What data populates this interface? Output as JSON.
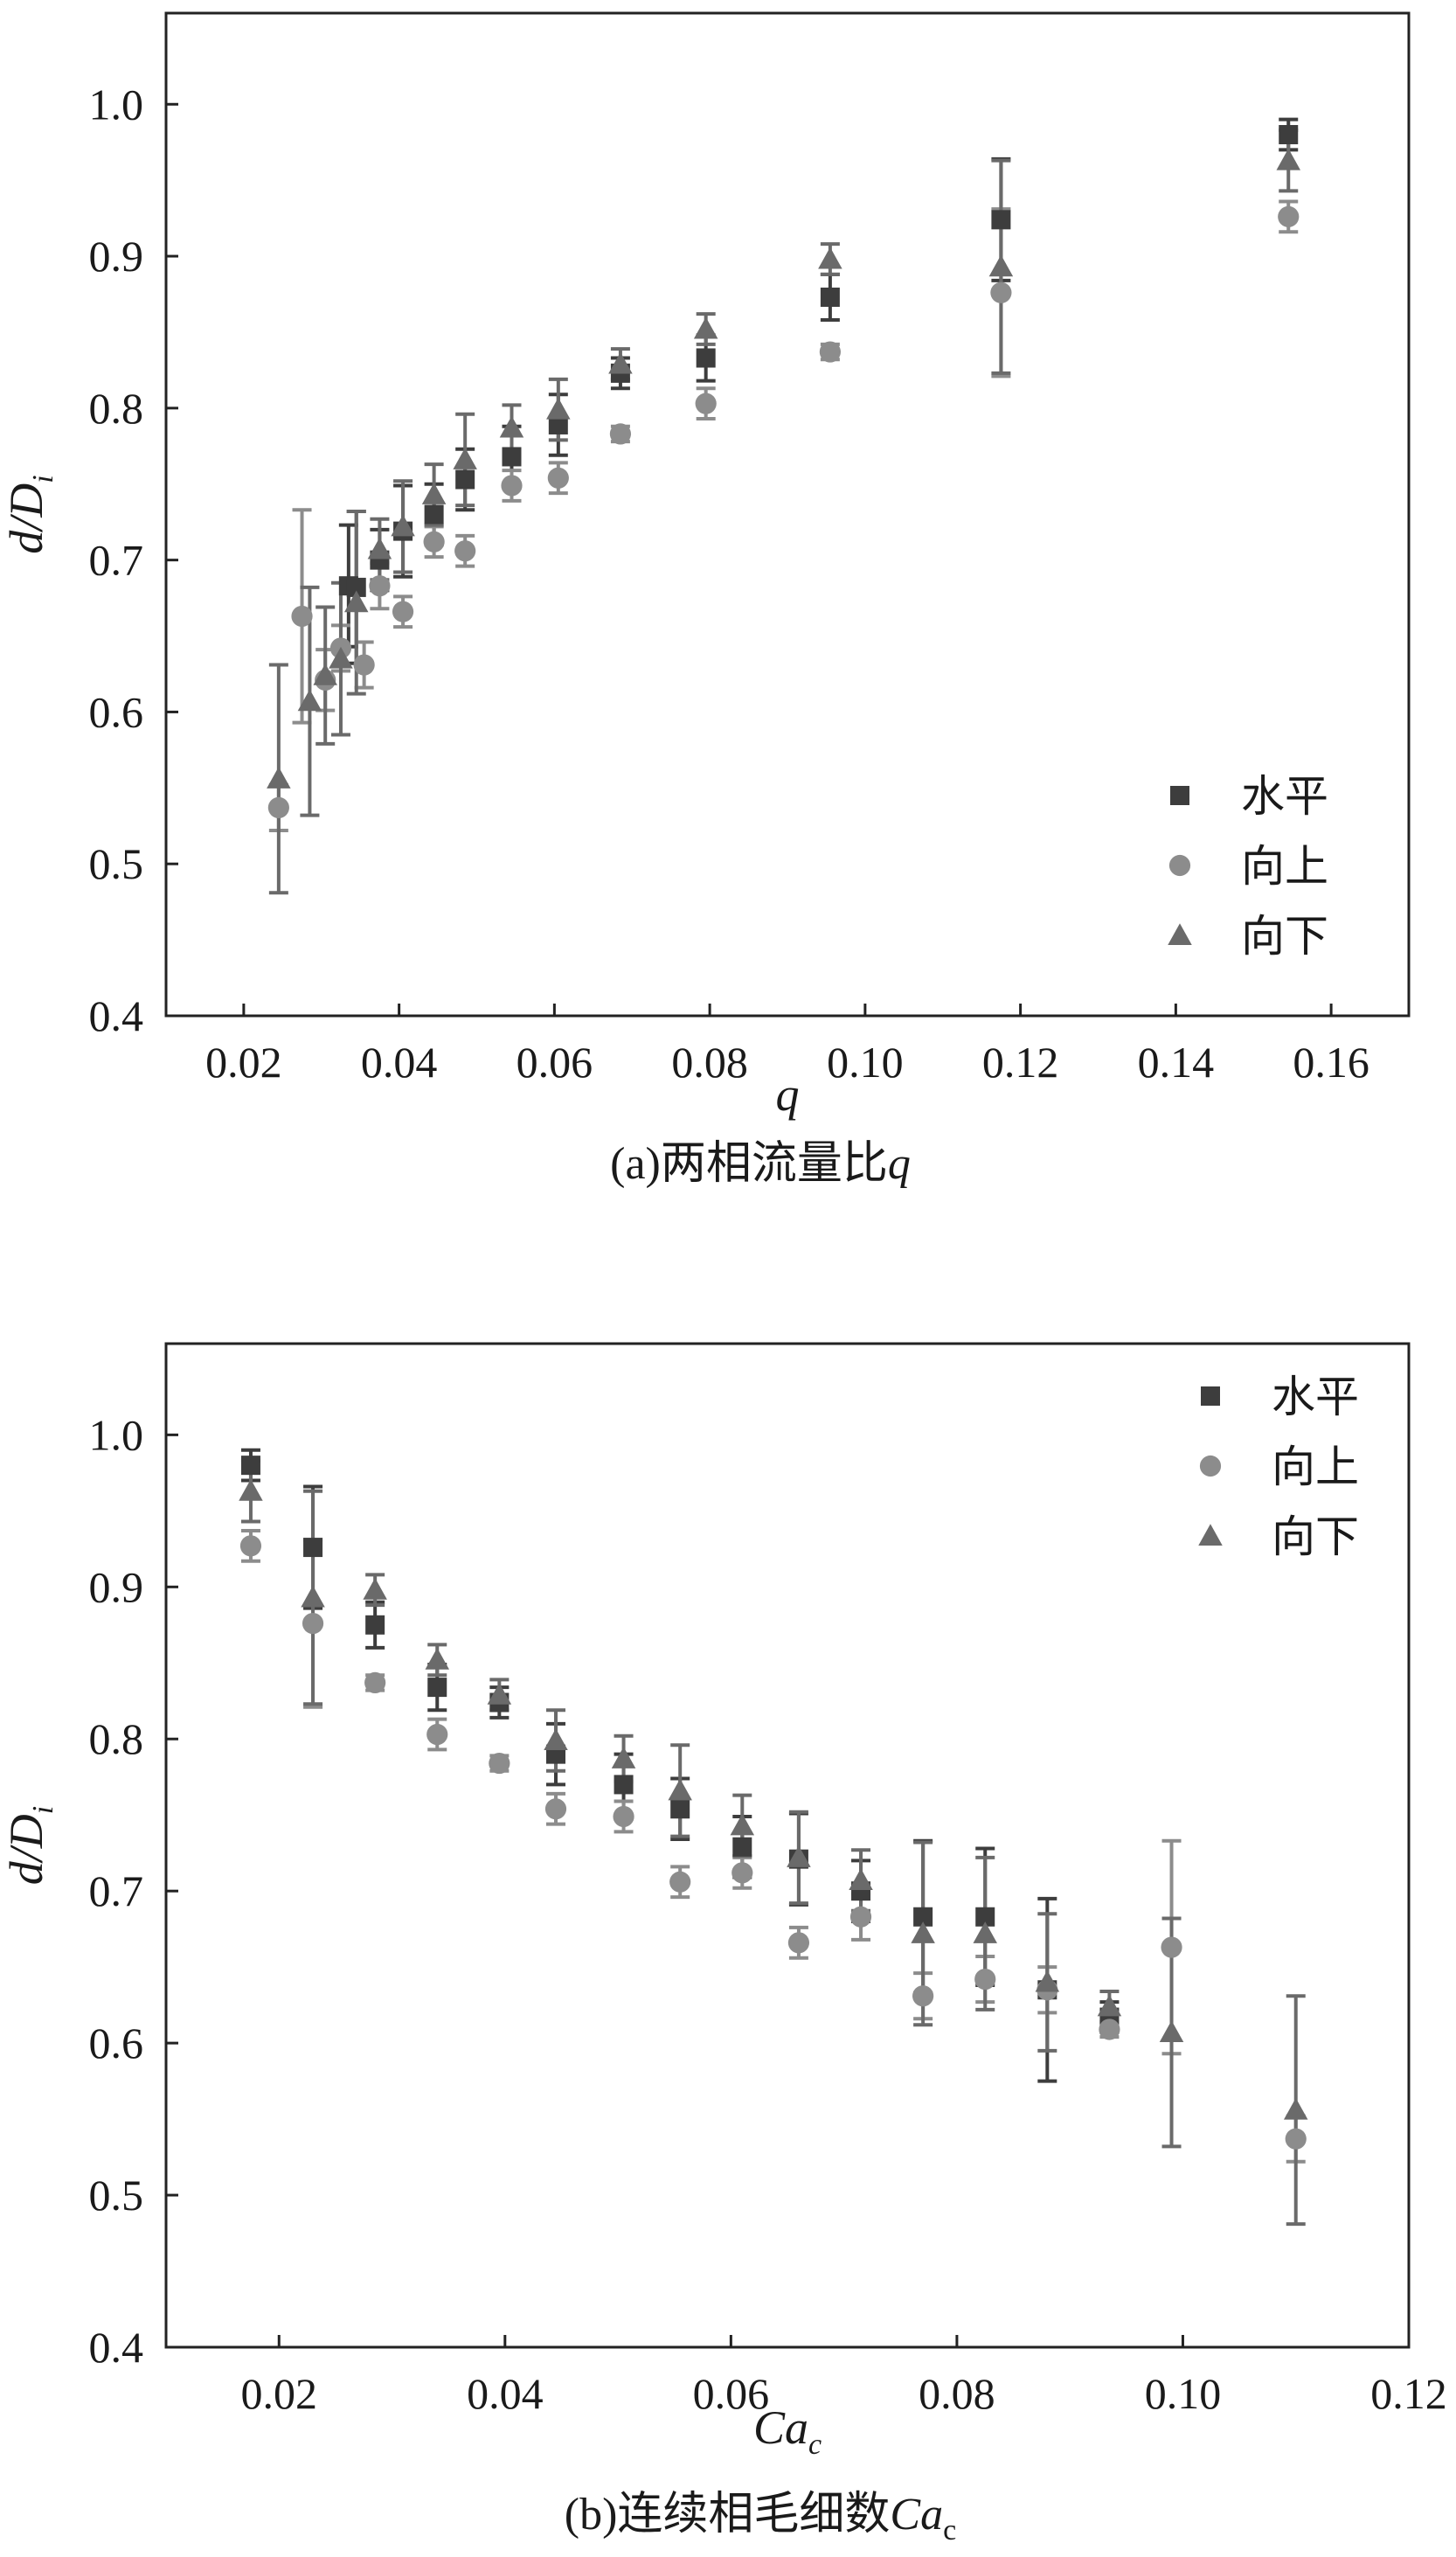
{
  "chart_data": [
    {
      "type": "scatter",
      "xlabel": "q",
      "ylabel": "d/D",
      "ylabel_sub": "i",
      "caption": "(a)两相流量比",
      "caption_var": "q",
      "xlim": [
        0.01,
        0.17
      ],
      "ylim": [
        0.4,
        1.06
      ],
      "xticks": [
        "0.02",
        "0.04",
        "0.06",
        "0.08",
        "0.10",
        "0.12",
        "0.14",
        "0.16"
      ],
      "yticks": [
        "0.4",
        "0.5",
        "0.6",
        "0.7",
        "0.8",
        "0.9",
        "1.0"
      ],
      "legend_position": "bottom-right",
      "series": [
        {
          "name": "水平",
          "marker": "square",
          "color": "#3d3d3d",
          "x": [
            0.0335,
            0.0345,
            0.0375,
            0.0405,
            0.0445,
            0.0485,
            0.0545,
            0.0605,
            0.0685,
            0.0795,
            0.0955,
            0.1175,
            0.1545
          ],
          "y": [
            0.683,
            0.682,
            0.7,
            0.719,
            0.73,
            0.753,
            0.768,
            0.789,
            0.823,
            0.833,
            0.873,
            0.924,
            0.98
          ],
          "err": [
            0.04,
            0.05,
            0.02,
            0.03,
            0.02,
            0.02,
            0.02,
            0.02,
            0.01,
            0.015,
            0.015,
            0.04,
            0.01
          ]
        },
        {
          "name": "向上",
          "marker": "circle",
          "color": "#8c8c8c",
          "x": [
            0.0245,
            0.0275,
            0.0305,
            0.0325,
            0.0355,
            0.0375,
            0.0405,
            0.0445,
            0.0485,
            0.0545,
            0.0605,
            0.0685,
            0.0795,
            0.0955,
            0.1175,
            0.1545
          ],
          "y": [
            0.537,
            0.663,
            0.621,
            0.642,
            0.631,
            0.683,
            0.666,
            0.712,
            0.706,
            0.749,
            0.754,
            0.783,
            0.803,
            0.837,
            0.876,
            0.926
          ],
          "err": [
            0.015,
            0.07,
            0.02,
            0.015,
            0.015,
            0.015,
            0.01,
            0.01,
            0.01,
            0.01,
            0.01,
            0.005,
            0.01,
            0.005,
            0.055,
            0.01
          ]
        },
        {
          "name": "向下",
          "marker": "triangle",
          "color": "#6a6a6a",
          "x": [
            0.0245,
            0.0285,
            0.0305,
            0.0325,
            0.0345,
            0.0375,
            0.0405,
            0.0445,
            0.0485,
            0.0545,
            0.0605,
            0.0685,
            0.0795,
            0.0955,
            0.1175,
            0.1545
          ],
          "y": [
            0.556,
            0.607,
            0.624,
            0.635,
            0.672,
            0.707,
            0.722,
            0.743,
            0.766,
            0.787,
            0.799,
            0.829,
            0.852,
            0.898,
            0.893,
            0.963
          ],
          "err": [
            0.075,
            0.075,
            0.045,
            0.05,
            0.06,
            0.02,
            0.03,
            0.02,
            0.03,
            0.015,
            0.02,
            0.01,
            0.01,
            0.01,
            0.07,
            0.02
          ]
        }
      ]
    },
    {
      "type": "scatter",
      "xlabel": "Ca",
      "xlabel_sub": "c",
      "ylabel": "d/D",
      "ylabel_sub": "i",
      "caption": "(b)连续相毛细数",
      "caption_var": "Ca",
      "caption_var_sub": "c",
      "xlim": [
        0.01,
        0.12
      ],
      "ylim": [
        0.4,
        1.06
      ],
      "xticks": [
        "0.02",
        "0.04",
        "0.06",
        "0.08",
        "0.10",
        "0.12"
      ],
      "yticks": [
        "0.4",
        "0.5",
        "0.6",
        "0.7",
        "0.8",
        "0.9",
        "1.0"
      ],
      "legend_position": "top-right",
      "series": [
        {
          "name": "水平",
          "marker": "square",
          "color": "#3d3d3d",
          "x": [
            0.0175,
            0.023,
            0.0285,
            0.034,
            0.0395,
            0.0445,
            0.0505,
            0.0555,
            0.061,
            0.066,
            0.0715,
            0.077,
            0.0825,
            0.088,
            0.0935
          ],
          "y": [
            0.98,
            0.926,
            0.875,
            0.834,
            0.824,
            0.79,
            0.77,
            0.754,
            0.729,
            0.721,
            0.7,
            0.683,
            0.683,
            0.635,
            0.617
          ],
          "err": [
            0.01,
            0.04,
            0.015,
            0.015,
            0.01,
            0.02,
            0.02,
            0.02,
            0.02,
            0.03,
            0.02,
            0.05,
            0.045,
            0.06,
            0.01
          ]
        },
        {
          "name": "向上",
          "marker": "circle",
          "color": "#8c8c8c",
          "x": [
            0.0175,
            0.023,
            0.0285,
            0.034,
            0.0395,
            0.0445,
            0.0505,
            0.0555,
            0.061,
            0.066,
            0.0715,
            0.077,
            0.0825,
            0.088,
            0.0935,
            0.099,
            0.11
          ],
          "y": [
            0.927,
            0.876,
            0.837,
            0.803,
            0.784,
            0.754,
            0.749,
            0.706,
            0.712,
            0.666,
            0.683,
            0.631,
            0.642,
            0.635,
            0.609,
            0.663,
            0.537
          ],
          "err": [
            0.01,
            0.055,
            0.005,
            0.01,
            0.005,
            0.01,
            0.01,
            0.01,
            0.01,
            0.01,
            0.015,
            0.015,
            0.015,
            0.015,
            0.005,
            0.07,
            0.015
          ]
        },
        {
          "name": "向下",
          "marker": "triangle",
          "color": "#6a6a6a",
          "x": [
            0.0175,
            0.023,
            0.0285,
            0.034,
            0.0395,
            0.0445,
            0.0505,
            0.0555,
            0.061,
            0.066,
            0.0715,
            0.077,
            0.0825,
            0.088,
            0.0935,
            0.099,
            0.11
          ],
          "y": [
            0.963,
            0.893,
            0.898,
            0.852,
            0.829,
            0.799,
            0.787,
            0.766,
            0.743,
            0.722,
            0.707,
            0.672,
            0.672,
            0.64,
            0.624,
            0.607,
            0.556
          ],
          "err": [
            0.02,
            0.07,
            0.01,
            0.01,
            0.01,
            0.02,
            0.015,
            0.03,
            0.02,
            0.03,
            0.02,
            0.06,
            0.05,
            0.045,
            0.01,
            0.075,
            0.075
          ]
        }
      ]
    }
  ]
}
